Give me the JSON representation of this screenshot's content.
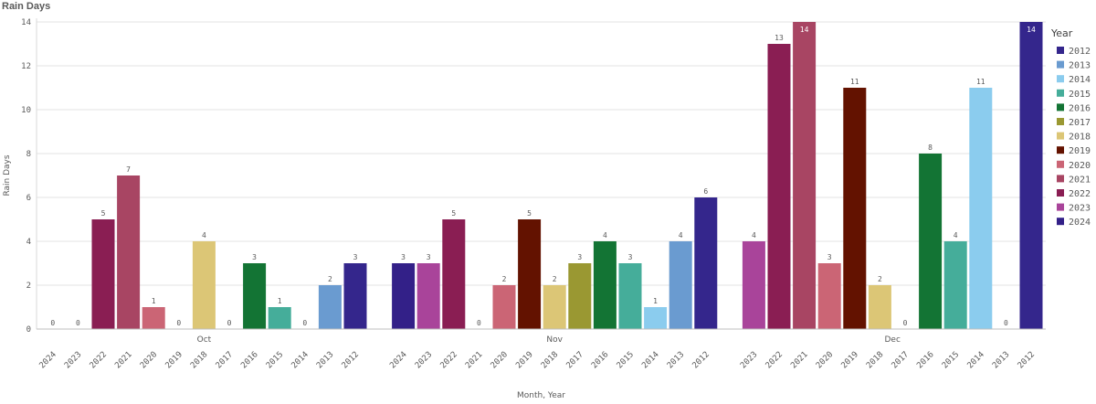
{
  "title": "Rain Days",
  "chart_data": {
    "type": "bar",
    "title": "Rain Days",
    "ylabel": "Rain Days",
    "xlabel": "Month, Year",
    "ylim": [
      0,
      14
    ],
    "yticks": [
      0,
      2,
      4,
      6,
      8,
      10,
      12,
      14
    ],
    "legend_title": "Year",
    "legend_position": "right",
    "grid": true,
    "groups": [
      {
        "name": "Oct",
        "bars": [
          {
            "year": "2024",
            "value": 0
          },
          {
            "year": "2023",
            "value": 0
          },
          {
            "year": "2022",
            "value": 5
          },
          {
            "year": "2021",
            "value": 7
          },
          {
            "year": "2020",
            "value": 1
          },
          {
            "year": "2019",
            "value": 0
          },
          {
            "year": "2018",
            "value": 4
          },
          {
            "year": "2017",
            "value": 0
          },
          {
            "year": "2016",
            "value": 3
          },
          {
            "year": "2015",
            "value": 1
          },
          {
            "year": "2014",
            "value": 0
          },
          {
            "year": "2013",
            "value": 2
          },
          {
            "year": "2012",
            "value": 3
          }
        ]
      },
      {
        "name": "Nov",
        "bars": [
          {
            "year": "2024",
            "value": 3
          },
          {
            "year": "2023",
            "value": 3
          },
          {
            "year": "2022",
            "value": 5
          },
          {
            "year": "2021",
            "value": 0
          },
          {
            "year": "2020",
            "value": 2
          },
          {
            "year": "2019",
            "value": 5
          },
          {
            "year": "2018",
            "value": 2
          },
          {
            "year": "2017",
            "value": 3
          },
          {
            "year": "2016",
            "value": 4
          },
          {
            "year": "2015",
            "value": 3
          },
          {
            "year": "2014",
            "value": 1
          },
          {
            "year": "2013",
            "value": 4
          },
          {
            "year": "2012",
            "value": 6
          }
        ]
      },
      {
        "name": "Dec",
        "bars": [
          {
            "year": "2023",
            "value": 4
          },
          {
            "year": "2022",
            "value": 13
          },
          {
            "year": "2021",
            "value": 14
          },
          {
            "year": "2020",
            "value": 3
          },
          {
            "year": "2019",
            "value": 11
          },
          {
            "year": "2018",
            "value": 2
          },
          {
            "year": "2017",
            "value": 0
          },
          {
            "year": "2016",
            "value": 8
          },
          {
            "year": "2015",
            "value": 4
          },
          {
            "year": "2014",
            "value": 11
          },
          {
            "year": "2013",
            "value": 0
          },
          {
            "year": "2012",
            "value": 14
          }
        ]
      }
    ],
    "legend": [
      {
        "year": "2012",
        "color": "#34268c"
      },
      {
        "year": "2013",
        "color": "#6a9bd0"
      },
      {
        "year": "2014",
        "color": "#8bccee"
      },
      {
        "year": "2015",
        "color": "#45ad9a"
      },
      {
        "year": "2016",
        "color": "#137434"
      },
      {
        "year": "2017",
        "color": "#9a9832"
      },
      {
        "year": "2018",
        "color": "#dcc676"
      },
      {
        "year": "2019",
        "color": "#631200"
      },
      {
        "year": "2020",
        "color": "#cb6575"
      },
      {
        "year": "2021",
        "color": "#a84563"
      },
      {
        "year": "2022",
        "color": "#8a1e53"
      },
      {
        "year": "2023",
        "color": "#a9449a"
      },
      {
        "year": "2024",
        "color": "#332088"
      }
    ]
  }
}
